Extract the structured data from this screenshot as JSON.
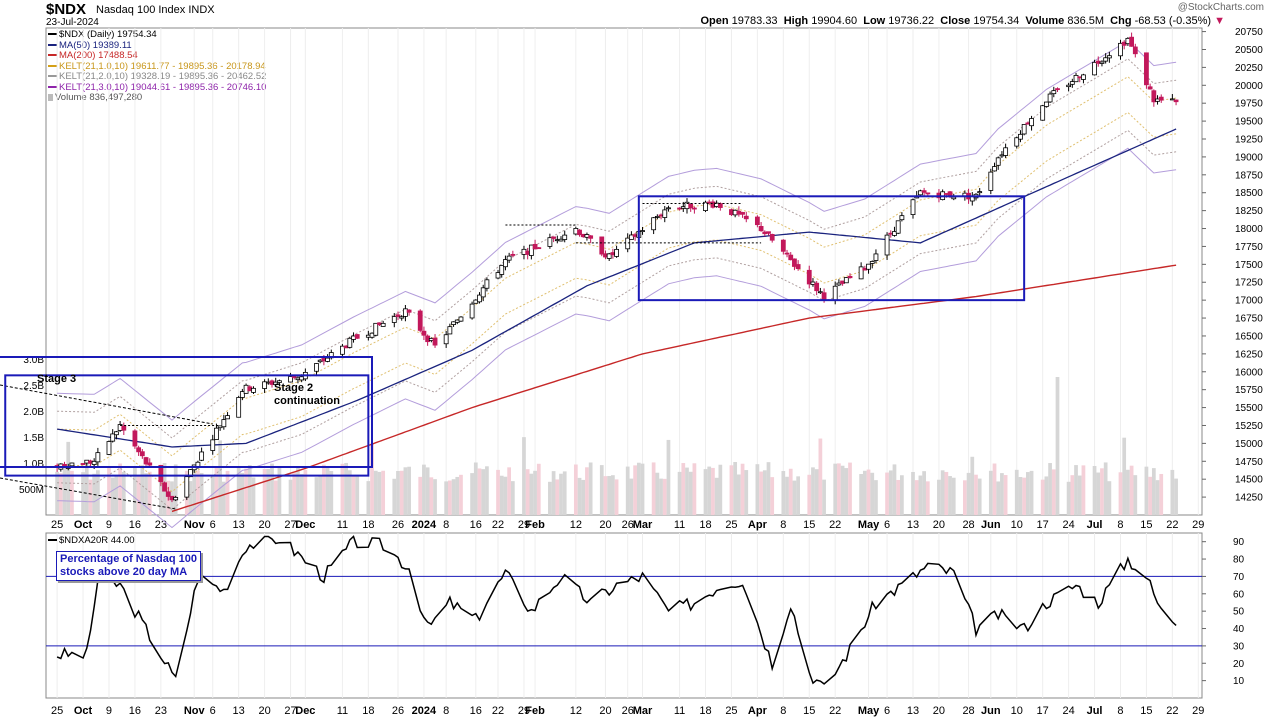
{
  "header": {
    "ticker": "$NDX",
    "name": "Nasdaq 100 Index",
    "exchange": "INDX",
    "date": "23-Jul-2024",
    "brand": "@StockCharts.com",
    "open_label": "Open",
    "open": "19783.33",
    "high_label": "High",
    "high": "19904.60",
    "low_label": "Low",
    "low": "19736.22",
    "close_label": "Close",
    "close": "19754.34",
    "volume_label": "Volume",
    "volume": "836.5M",
    "chg_label": "Chg",
    "chg": "-68.53 (-0.35%)"
  },
  "legend": [
    {
      "text": "$NDX (Daily) 19754.34",
      "color": "#000000"
    },
    {
      "text": "MA(50) 19389.11",
      "color": "#1a237e"
    },
    {
      "text": "MA(200) 17488.54",
      "color": "#c62828"
    },
    {
      "text": "KELT(21,1.0,10) 19611.77 - 19895.36 - 20178.94",
      "color": "#d4a017"
    },
    {
      "text": "KELT(21,2.0,10) 19328.19 - 19895.36 - 20462.52",
      "color": "#999999"
    },
    {
      "text": "KELT(21,3.0,10) 19044.61 - 19895.36 - 20746.10",
      "color": "#8e24aa"
    },
    {
      "text": "Volume 836,497,280",
      "color": "#888888"
    }
  ],
  "annotations": {
    "stage3": "Stage 3",
    "stage2_line1": "Stage 2",
    "stage2_line2": "continuation",
    "indicator_box_line1": "Percentage of Nasdaq 100",
    "indicator_box_line2": "stocks above 20 day MA"
  },
  "indicator": {
    "title": "$NDXA20R 44.00"
  },
  "colors": {
    "up": "#ffffff",
    "down": "#c2185b",
    "frame_box": "#1a1ab8",
    "ma50": "#1a237e",
    "ma200": "#c62828"
  },
  "chart_data": [
    {
      "type": "candlestick",
      "title": "$NDX (Daily) 19754.34",
      "ylim": [
        14000,
        20800
      ],
      "y_ticks": [
        14250,
        14500,
        14750,
        15000,
        15250,
        15500,
        15750,
        16000,
        16250,
        16500,
        16750,
        17000,
        17250,
        17500,
        17750,
        18000,
        18250,
        18500,
        18750,
        19000,
        19250,
        19500,
        19750,
        20000,
        20250,
        20500,
        20750
      ],
      "volume_ticks": [
        "500M",
        "1.0B",
        "1.5B",
        "2.0B",
        "2.5B",
        "3.0B"
      ],
      "x_tick_labels": [
        "25",
        "Oct",
        "9",
        "16",
        "23",
        "Nov",
        "6",
        "13",
        "20",
        "27",
        "Dec",
        "11",
        "18",
        "26",
        "2024",
        "8",
        "16",
        "22",
        "29",
        "Feb",
        "12",
        "20",
        "26",
        "Mar",
        "11",
        "18",
        "25",
        "Apr",
        "8",
        "15",
        "22",
        "May",
        "6",
        "13",
        "20",
        "28",
        "Jun",
        "10",
        "17",
        "24",
        "Jul",
        "8",
        "15",
        "22",
        "29"
      ],
      "close_anchors": {
        "2023-09-25": 14700,
        "2023-10-05": 14750,
        "2023-10-12": 15250,
        "2023-10-26": 14200,
        "2023-11-01": 14700,
        "2023-11-14": 15750,
        "2023-11-30": 15950,
        "2023-12-14": 16450,
        "2023-12-28": 16850,
        "2024-01-05": 16350,
        "2024-01-24": 17550,
        "2024-02-12": 18000,
        "2024-02-21": 17600,
        "2024-03-08": 18300,
        "2024-03-21": 18350,
        "2024-04-02": 18000,
        "2024-04-19": 17050,
        "2024-04-30": 17450,
        "2024-05-15": 18500,
        "2024-05-30": 18450,
        "2024-06-05": 19000,
        "2024-06-18": 19800,
        "2024-07-10": 20650,
        "2024-07-17": 19800,
        "2024-07-23": 19754.34
      },
      "ma50_anchors": {
        "2023-09-25": 15200,
        "2023-10-26": 14950,
        "2023-11-15": 15000,
        "2023-12-15": 15600,
        "2024-01-15": 16300,
        "2024-02-15": 17200,
        "2024-03-15": 17800,
        "2024-04-15": 17950,
        "2024-05-15": 17800,
        "2024-06-10": 18400,
        "2024-07-23": 19389.11
      },
      "ma200_anchors": {
        "2023-10-26": 14050,
        "2023-12-01": 14650,
        "2024-01-15": 15500,
        "2024-03-01": 16250,
        "2024-04-15": 16750,
        "2024-05-30": 17050,
        "2024-07-23": 17488.54
      },
      "boxes": [
        {
          "from": "2023-09-11",
          "to": "2023-12-18",
          "y_from": 14550,
          "y_to": 15950
        },
        {
          "from": "2024-02-29",
          "to": "2024-06-12",
          "y_from": 17000,
          "y_to": 18450
        }
      ]
    },
    {
      "type": "line",
      "title": "$NDXA20R 44.00",
      "ylim": [
        0,
        95
      ],
      "y_ticks": [
        10,
        20,
        30,
        40,
        50,
        60,
        70,
        80,
        90
      ],
      "hlines": [
        30,
        70
      ],
      "anchors": {
        "2023-09-25": 25,
        "2023-10-03": 25,
        "2023-10-06": 68,
        "2023-10-12": 65,
        "2023-10-23": 25,
        "2023-10-27": 10,
        "2023-11-02": 70,
        "2023-11-09": 62,
        "2023-11-15": 88,
        "2023-11-24": 92,
        "2023-12-06": 70,
        "2023-12-14": 90,
        "2023-12-22": 88,
        "2023-12-29": 75,
        "2024-01-03": 40,
        "2024-01-09": 55,
        "2024-01-16": 45,
        "2024-01-24": 72,
        "2024-01-31": 50,
        "2024-02-08": 70,
        "2024-02-16": 55,
        "2024-02-23": 65,
        "2024-03-01": 70,
        "2024-03-08": 50,
        "2024-03-15": 55,
        "2024-03-22": 65,
        "2024-03-28": 68,
        "2024-04-05": 20,
        "2024-04-10": 55,
        "2024-04-15": 15,
        "2024-04-19": 5,
        "2024-04-26": 28,
        "2024-05-03": 55,
        "2024-05-10": 65,
        "2024-05-17": 76,
        "2024-05-24": 72,
        "2024-05-30": 40,
        "2024-06-05": 48,
        "2024-06-12": 40,
        "2024-06-18": 55,
        "2024-06-26": 65,
        "2024-07-02": 55,
        "2024-07-10": 80,
        "2024-07-15": 70,
        "2024-07-19": 50,
        "2024-07-23": 44
      }
    }
  ]
}
